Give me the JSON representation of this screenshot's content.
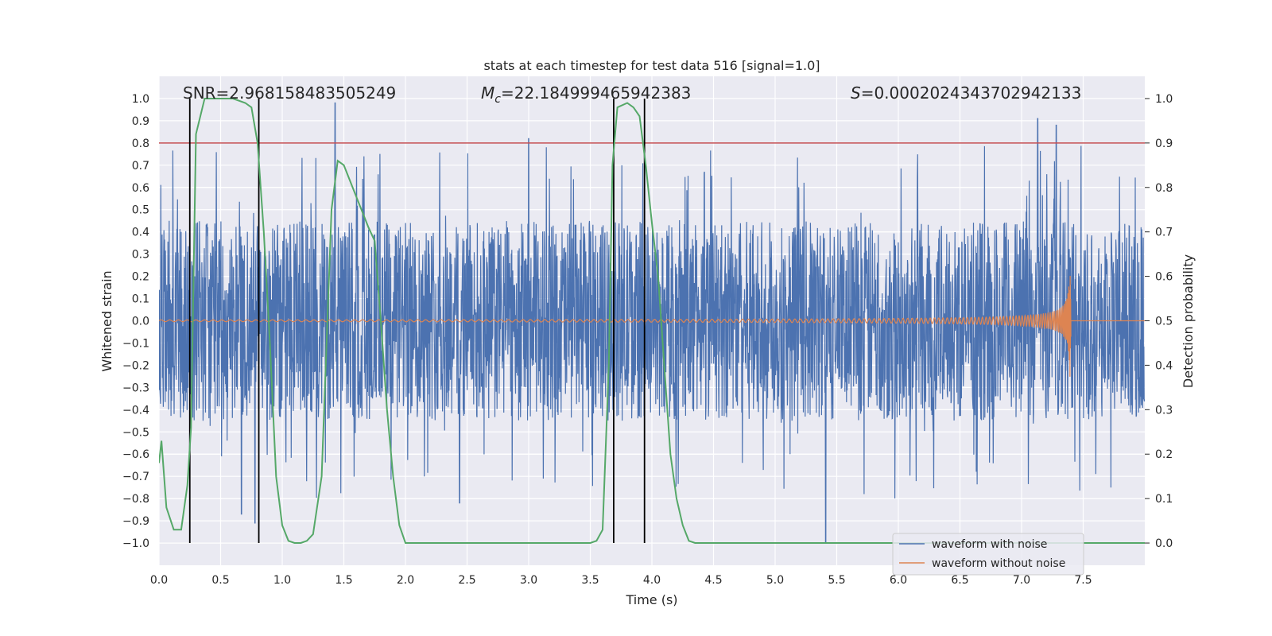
{
  "chart_data": {
    "type": "line",
    "title": "stats at each timestep for test data 516 [signal=1.0]",
    "xlabel": "Time (s)",
    "ylabel_left": "Whitened strain",
    "ylabel_right": "Detection probability",
    "xlim": [
      0.0,
      8.0
    ],
    "ylim_left": [
      -1.1,
      1.1
    ],
    "ylim_right": [
      -0.05,
      1.05
    ],
    "x_ticks": [
      0.0,
      0.5,
      1.0,
      1.5,
      2.0,
      2.5,
      3.0,
      3.5,
      4.0,
      4.5,
      5.0,
      5.5,
      6.0,
      6.5,
      7.0,
      7.5
    ],
    "x_tick_labels": [
      "0.0",
      "0.5",
      "1.0",
      "1.5",
      "2.0",
      "2.5",
      "3.0",
      "3.5",
      "4.0",
      "4.5",
      "5.0",
      "5.5",
      "6.0",
      "6.5",
      "7.0",
      "7.5"
    ],
    "y_left_ticks": [
      1.0,
      0.9,
      0.8,
      0.7,
      0.6,
      0.5,
      0.4,
      0.3,
      0.2,
      0.1,
      0.0,
      -0.1,
      -0.2,
      -0.3,
      -0.4,
      -0.5,
      -0.6,
      -0.7,
      -0.8,
      -0.9,
      -1.0
    ],
    "y_left_tick_labels": [
      "1.0",
      "0.9",
      "0.8",
      "0.7",
      "0.6",
      "0.5",
      "0.4",
      "0.3",
      "0.2",
      "0.1",
      "0.0",
      "−0.1",
      "−0.2",
      "−0.3",
      "−0.4",
      "−0.5",
      "−0.6",
      "−0.7",
      "−0.8",
      "−0.9",
      "−1.0"
    ],
    "y_right_ticks": [
      1.0,
      0.9,
      0.8,
      0.7,
      0.6,
      0.5,
      0.4,
      0.3,
      0.2,
      0.1,
      0.0
    ],
    "y_right_tick_labels": [
      "1.0",
      "0.9",
      "0.8",
      "0.7",
      "0.6",
      "0.5",
      "0.4",
      "0.3",
      "0.2",
      "0.1",
      "0.0"
    ],
    "annotations": {
      "snr": "SNR=2.968158483505249",
      "mc_symbol": "M",
      "mc_sub": "c",
      "mc_value": "=22.184999465942383",
      "s_symbol": "S",
      "s_value": "=0.0002024343702942133"
    },
    "threshold_line": {
      "axis": "right",
      "value": 0.9,
      "color": "#c44e52"
    },
    "vertical_lines": [
      0.25,
      0.81,
      3.69,
      3.94
    ],
    "noise": {
      "duration": 8.0,
      "band_amplitude": 0.45,
      "peak_amplitude": 0.98,
      "notable_peaks": [
        [
          1.43,
          0.98
        ],
        [
          3.0,
          0.82
        ],
        [
          7.13,
          0.91
        ],
        [
          7.28,
          0.88
        ],
        [
          5.41,
          -1.0
        ],
        [
          2.44,
          -0.82
        ],
        [
          0.67,
          -0.87
        ],
        [
          0.78,
          -0.91
        ]
      ]
    },
    "clean_waveform": {
      "end_time": 7.4,
      "peak_amplitude": 0.29
    },
    "series": [
      {
        "name": "waveform with noise",
        "color": "#4c72b0",
        "axis": "left"
      },
      {
        "name": "waveform without noise",
        "color": "#dd8452",
        "axis": "left"
      },
      {
        "name": "detection probability",
        "color": "#55a868",
        "axis": "right",
        "x": [
          0.0,
          0.02,
          0.06,
          0.12,
          0.18,
          0.23,
          0.26,
          0.3,
          0.37,
          0.45,
          0.6,
          0.7,
          0.75,
          0.8,
          0.85,
          0.9,
          0.95,
          1.0,
          1.05,
          1.1,
          1.15,
          1.2,
          1.25,
          1.32,
          1.4,
          1.45,
          1.5,
          1.6,
          1.7,
          1.75,
          1.8,
          1.85,
          1.9,
          1.95,
          2.0,
          2.5,
          3.0,
          3.5,
          3.55,
          3.6,
          3.65,
          3.68,
          3.72,
          3.8,
          3.85,
          3.9,
          3.95,
          4.0,
          4.05,
          4.1,
          4.15,
          4.2,
          4.25,
          4.3,
          4.35,
          5.0,
          6.0,
          7.0,
          7.5,
          8.0
        ],
        "y": [
          0.18,
          0.23,
          0.08,
          0.03,
          0.03,
          0.13,
          0.26,
          0.92,
          1.0,
          1.0,
          1.0,
          0.99,
          0.98,
          0.9,
          0.7,
          0.45,
          0.15,
          0.04,
          0.005,
          0.0,
          0.0,
          0.005,
          0.02,
          0.15,
          0.75,
          0.86,
          0.85,
          0.78,
          0.71,
          0.68,
          0.5,
          0.3,
          0.15,
          0.04,
          0.0,
          0.0,
          0.0,
          0.0,
          0.005,
          0.03,
          0.4,
          0.85,
          0.98,
          0.99,
          0.98,
          0.96,
          0.85,
          0.72,
          0.6,
          0.4,
          0.2,
          0.1,
          0.04,
          0.005,
          0.0,
          0.0,
          0.0,
          0.0,
          0.0,
          0.0
        ]
      }
    ],
    "legend": {
      "loc": "lower-right",
      "entries": [
        "waveform with noise",
        "waveform without noise"
      ]
    }
  }
}
